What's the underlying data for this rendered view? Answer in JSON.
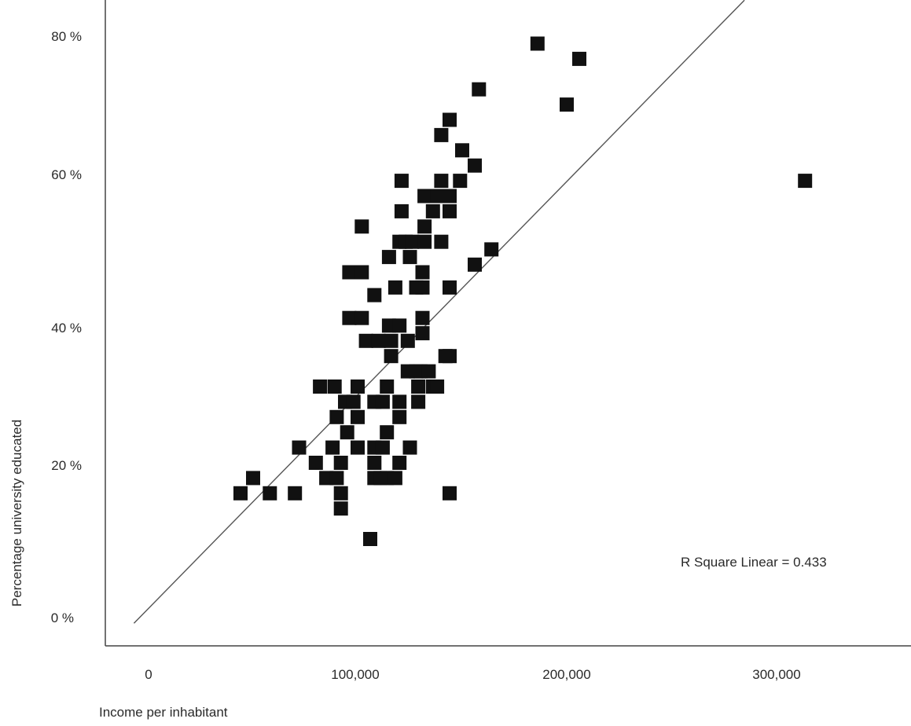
{
  "chart_data": {
    "type": "scatter",
    "title": "",
    "xlabel": "Income per inhabitant",
    "ylabel": "Percentage university educated",
    "xlim": [
      -20000,
      370000
    ],
    "ylim": [
      -4,
      92
    ],
    "x_ticks": [
      0,
      100000,
      200000,
      300000
    ],
    "x_tick_labels": [
      "0",
      "100,000",
      "200,000",
      "300,000"
    ],
    "y_ticks": [
      0,
      20,
      40,
      60,
      80
    ],
    "y_tick_labels": [
      "0 %",
      "20 %",
      "40 %",
      "60 %",
      "80 %"
    ],
    "grid": false,
    "legend": "none",
    "annotation": "R Square Linear = 0.433",
    "fit_line": {
      "slope": 0.00028,
      "intercept": 0.9,
      "x_range": [
        -7000,
        285000
      ]
    },
    "marker_color": "#111111",
    "line_color": "#555555",
    "points": [
      [
        44000,
        16
      ],
      [
        50000,
        18
      ],
      [
        58000,
        16
      ],
      [
        70000,
        16
      ],
      [
        72000,
        22
      ],
      [
        80000,
        20
      ],
      [
        82000,
        30
      ],
      [
        85000,
        18
      ],
      [
        88000,
        22
      ],
      [
        89000,
        30
      ],
      [
        90000,
        26
      ],
      [
        90000,
        18
      ],
      [
        92000,
        14
      ],
      [
        92000,
        20
      ],
      [
        92000,
        16
      ],
      [
        94000,
        28
      ],
      [
        95000,
        24
      ],
      [
        96000,
        45
      ],
      [
        96000,
        39
      ],
      [
        98000,
        28
      ],
      [
        100000,
        22
      ],
      [
        100000,
        26
      ],
      [
        100000,
        30
      ],
      [
        102000,
        45
      ],
      [
        102000,
        39
      ],
      [
        102000,
        51
      ],
      [
        104000,
        36
      ],
      [
        106000,
        10
      ],
      [
        108000,
        18
      ],
      [
        108000,
        20
      ],
      [
        108000,
        22
      ],
      [
        108000,
        28
      ],
      [
        108000,
        42
      ],
      [
        110000,
        36
      ],
      [
        111000,
        18
      ],
      [
        112000,
        28
      ],
      [
        112000,
        22
      ],
      [
        114000,
        18
      ],
      [
        114000,
        24
      ],
      [
        114000,
        30
      ],
      [
        115000,
        38
      ],
      [
        115000,
        47
      ],
      [
        116000,
        34
      ],
      [
        116000,
        36
      ],
      [
        118000,
        18
      ],
      [
        118000,
        43
      ],
      [
        120000,
        20
      ],
      [
        120000,
        26
      ],
      [
        120000,
        28
      ],
      [
        120000,
        38
      ],
      [
        120000,
        49
      ],
      [
        121000,
        53
      ],
      [
        121000,
        57
      ],
      [
        123000,
        49
      ],
      [
        124000,
        32
      ],
      [
        124000,
        36
      ],
      [
        125000,
        22
      ],
      [
        125000,
        47
      ],
      [
        126000,
        49
      ],
      [
        128000,
        32
      ],
      [
        128000,
        43
      ],
      [
        129000,
        28
      ],
      [
        129000,
        30
      ],
      [
        130000,
        32
      ],
      [
        131000,
        37
      ],
      [
        131000,
        39
      ],
      [
        131000,
        43
      ],
      [
        131000,
        45
      ],
      [
        132000,
        49
      ],
      [
        132000,
        51
      ],
      [
        132000,
        55
      ],
      [
        134000,
        32
      ],
      [
        136000,
        30
      ],
      [
        136000,
        53
      ],
      [
        138000,
        55
      ],
      [
        138000,
        30
      ],
      [
        140000,
        49
      ],
      [
        140000,
        57
      ],
      [
        140000,
        63
      ],
      [
        142000,
        34
      ],
      [
        144000,
        34
      ],
      [
        144000,
        43
      ],
      [
        144000,
        53
      ],
      [
        144000,
        55
      ],
      [
        144000,
        65
      ],
      [
        144000,
        16
      ],
      [
        149000,
        57
      ],
      [
        150000,
        61
      ],
      [
        156000,
        46
      ],
      [
        156000,
        59
      ],
      [
        158000,
        69
      ],
      [
        164000,
        48
      ],
      [
        186000,
        75
      ],
      [
        200000,
        67
      ],
      [
        206000,
        73
      ],
      [
        314000,
        57
      ]
    ]
  }
}
